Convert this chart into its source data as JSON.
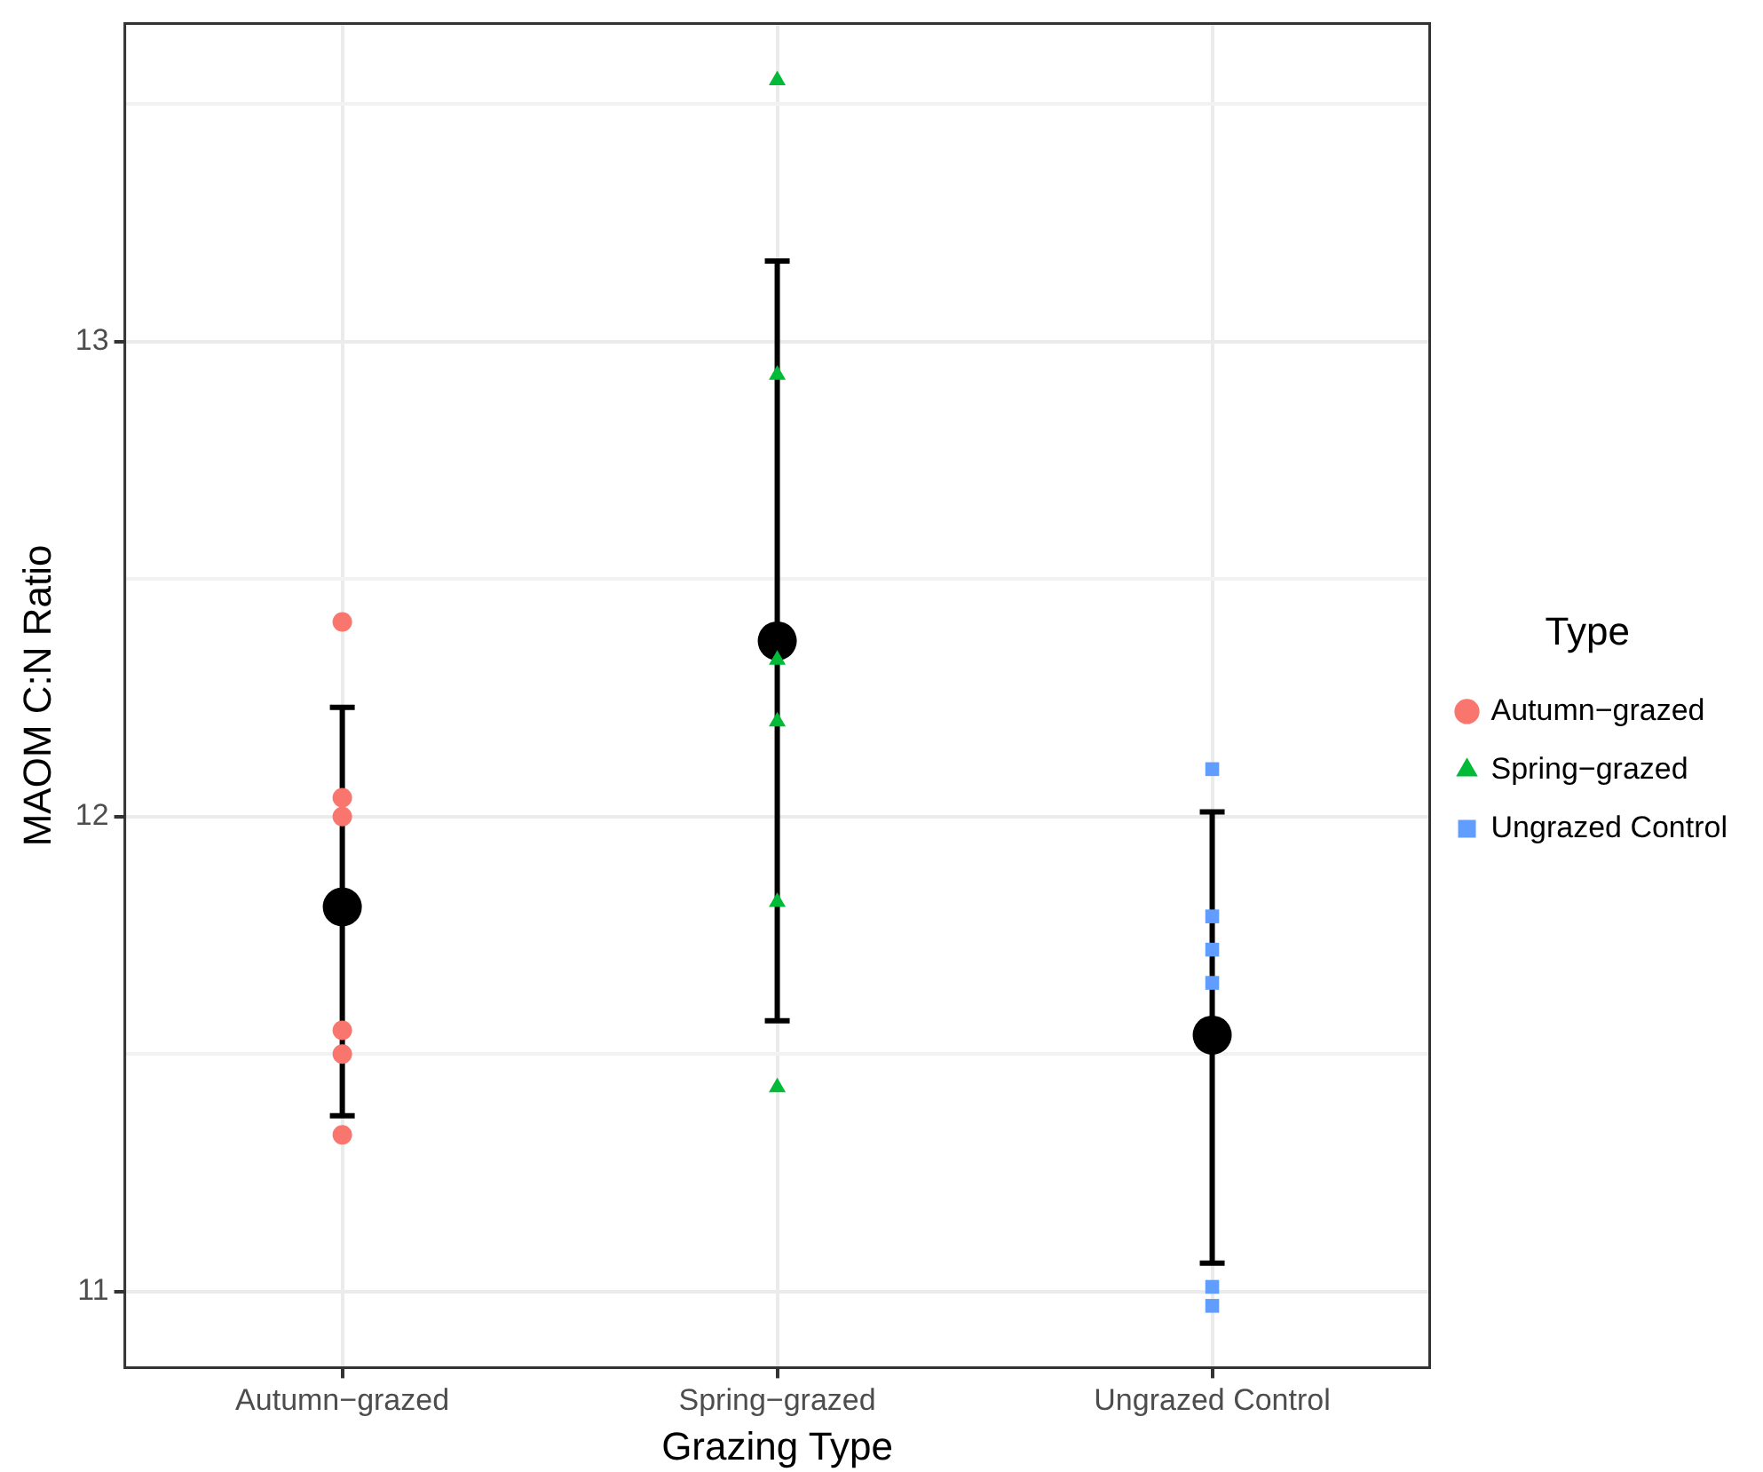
{
  "chart_data": {
    "type": "scatter",
    "xlabel": "Grazing Type",
    "ylabel": "MAOM C:N Ratio",
    "legend_title": "Type",
    "legend": "right",
    "categories": [
      "Autumn−grazed",
      "Spring−grazed",
      "Ungrazed Control"
    ],
    "ylim": [
      10.84,
      13.67
    ],
    "yticks": [
      {
        "value": 11,
        "label": "11"
      },
      {
        "value": 11.5,
        "label": null
      },
      {
        "value": 12,
        "label": "12"
      },
      {
        "value": 12.5,
        "label": null
      },
      {
        "value": 13,
        "label": "13"
      },
      {
        "value": 13.5,
        "label": null
      }
    ],
    "grid": true,
    "series": [
      {
        "name": "Autumn−grazed",
        "color": "#f8766d",
        "marker": "circle",
        "x": [
          "Autumn−grazed",
          "Autumn−grazed",
          "Autumn−grazed",
          "Autumn−grazed",
          "Autumn−grazed",
          "Autumn−grazed"
        ],
        "values": [
          12.41,
          12.04,
          12.0,
          11.55,
          11.5,
          11.33
        ]
      },
      {
        "name": "Spring−grazed",
        "color": "#00ba38",
        "marker": "triangle",
        "x": [
          "Spring−grazed",
          "Spring−grazed",
          "Spring−grazed",
          "Spring−grazed",
          "Spring−grazed",
          "Spring−grazed"
        ],
        "values": [
          13.55,
          12.93,
          12.33,
          12.2,
          11.82,
          11.43
        ]
      },
      {
        "name": "Ungrazed Control",
        "color": "#619cff",
        "marker": "square",
        "x": [
          "Ungrazed Control",
          "Ungrazed Control",
          "Ungrazed Control",
          "Ungrazed Control",
          "Ungrazed Control",
          "Ungrazed Control"
        ],
        "values": [
          12.1,
          11.79,
          11.72,
          11.65,
          11.01,
          10.97
        ]
      },
      {
        "color": "#000000",
        "marker": "circle",
        "x": [
          "Autumn−grazed",
          "Spring−grazed",
          "Ungrazed Control"
        ],
        "values": [
          11.81,
          12.37,
          11.54
        ],
        "errors": [
          [
            11.37,
            12.23
          ],
          [
            11.57,
            13.17
          ],
          [
            11.06,
            12.01
          ]
        ]
      }
    ]
  }
}
